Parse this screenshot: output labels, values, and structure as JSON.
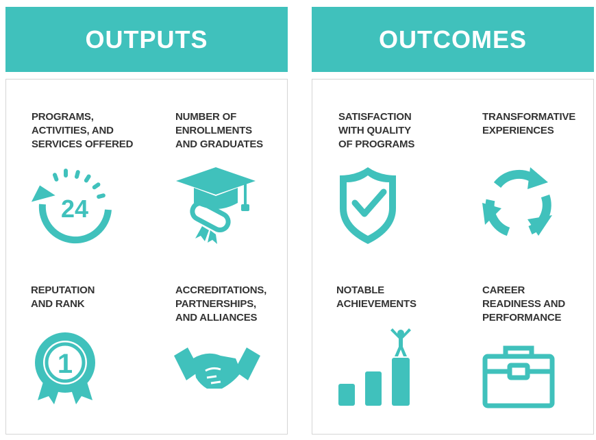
{
  "accent_color": "#40c1bc",
  "outputs": {
    "title": "OUTPUTS",
    "items": [
      {
        "label": "PROGRAMS,\nACTIVITIES, AND\nSERVICES OFFERED",
        "icon": "clock-24-icon",
        "icon_text": "24"
      },
      {
        "label": "NUMBER OF\nENROLLMENTS\nAND GRADUATES",
        "icon": "graduation-cap-diploma-icon"
      },
      {
        "label": "REPUTATION\nAND RANK",
        "icon": "award-ribbon-icon",
        "icon_text": "1"
      },
      {
        "label": "ACCREDITATIONS,\nPARTNERSHIPS,\nAND ALLIANCES",
        "icon": "handshake-icon"
      }
    ]
  },
  "outcomes": {
    "title": "OUTCOMES",
    "items": [
      {
        "label": "SATISFACTION\nWITH QUALITY\nOF PROGRAMS",
        "icon": "shield-check-icon"
      },
      {
        "label": "TRANSFORMATIVE\nEXPERIENCES",
        "icon": "cycle-arrows-icon"
      },
      {
        "label": "NOTABLE\nACHIEVEMENTS",
        "icon": "bar-chart-person-icon"
      },
      {
        "label": "CAREER\nREADINESS AND\nPERFORMANCE",
        "icon": "briefcase-icon"
      }
    ]
  }
}
